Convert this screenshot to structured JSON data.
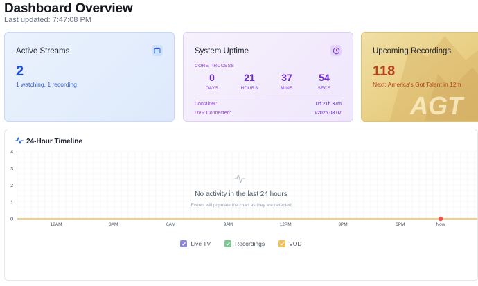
{
  "header": {
    "title": "Dashboard Overview",
    "last_updated": "Last updated: 7:47:08 PM"
  },
  "streams": {
    "title": "Active Streams",
    "count": "2",
    "detail": "1 watching, 1 recording",
    "icon": "tv-icon"
  },
  "uptime": {
    "title": "System Uptime",
    "core_label": "CORE PROCESS",
    "values": [
      {
        "num": "0",
        "unit": "DAYS"
      },
      {
        "num": "21",
        "unit": "HOURS"
      },
      {
        "num": "37",
        "unit": "MINS"
      },
      {
        "num": "54",
        "unit": "SECS"
      }
    ],
    "container_label": "Container:",
    "container_value": "0d 21h 37m",
    "dvr_label": "DVR Connected:",
    "dvr_value": "v2026.08.07",
    "icon": "clock-icon"
  },
  "recordings": {
    "title": "Upcoming Recordings",
    "count": "118",
    "next": "Next: America's Got Talent in 12m",
    "logo_text": "AGT"
  },
  "timeline": {
    "title": "24-Hour Timeline",
    "empty_title": "No activity in the last 24 hours",
    "empty_subtitle": "Events will populate the chart as they are detected",
    "legend": [
      {
        "name": "Live TV",
        "color": "#8b87d8"
      },
      {
        "name": "Recordings",
        "color": "#7cc98f"
      },
      {
        "name": "VOD",
        "color": "#f2c15a"
      }
    ]
  },
  "chart_data": {
    "type": "line",
    "y_ticks": [
      "0",
      "1",
      "2",
      "3",
      "4"
    ],
    "x_ticks": [
      "12AM",
      "3AM",
      "6AM",
      "9AM",
      "12PM",
      "3PM",
      "6PM",
      "Now"
    ],
    "ylim": [
      0,
      4
    ],
    "grid": true,
    "series": [
      {
        "name": "Live TV",
        "values": []
      },
      {
        "name": "Recordings",
        "values": []
      },
      {
        "name": "VOD",
        "values": []
      }
    ],
    "now_marker_value": 0
  },
  "colors": {
    "accent_blue": "#1d4fd8",
    "accent_purple": "#6d28d9",
    "accent_orange": "#b4421a",
    "baseline": "#f2c15a",
    "now_marker": "#ef5350"
  }
}
